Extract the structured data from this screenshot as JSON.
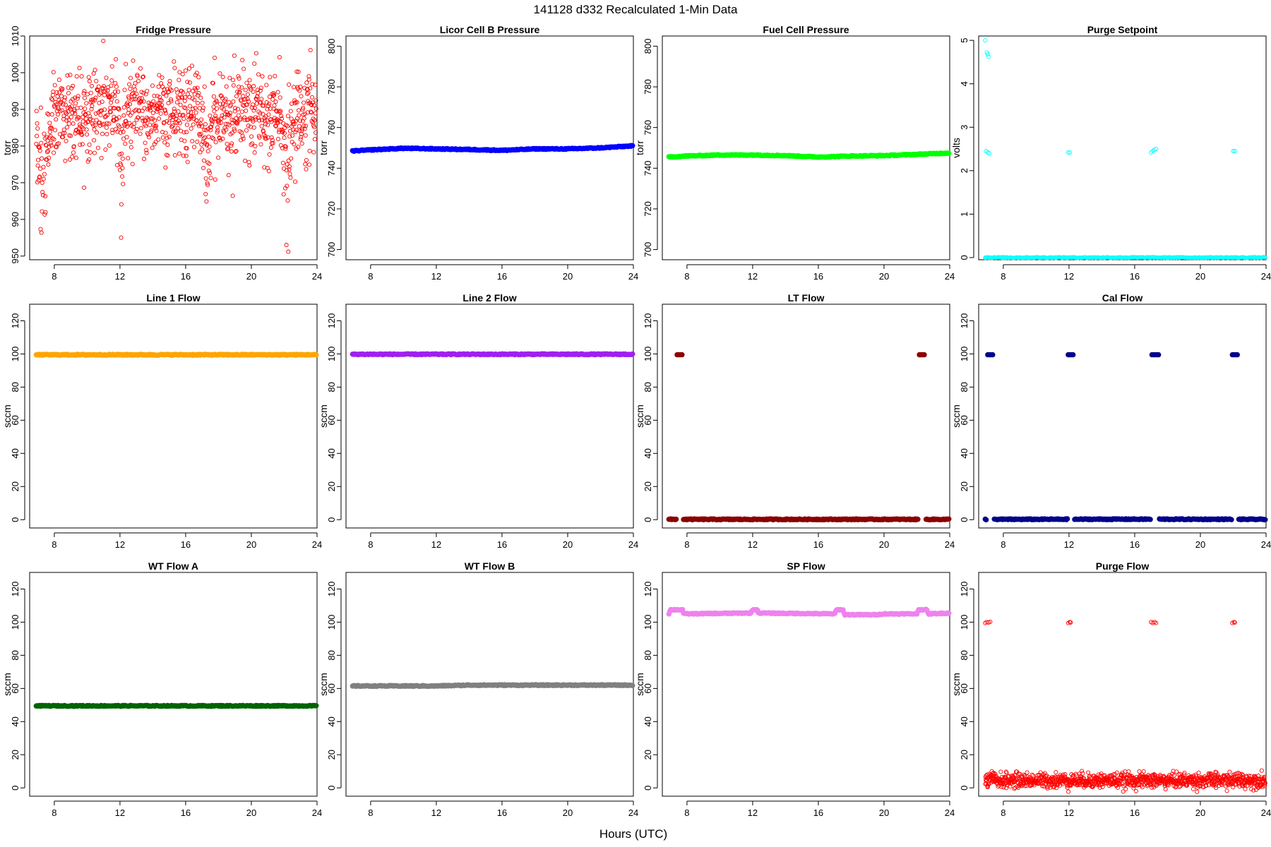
{
  "page": {
    "title": "141128   d332   Recalculated 1-Min Data",
    "xlabel": "Hours (UTC)"
  },
  "chart_data": [
    {
      "type": "scatter",
      "title": "Fridge Pressure",
      "ylabel": "torr",
      "xlabel": "",
      "color": "#ff0000",
      "marker": "open",
      "xlim": [
        6.5,
        24
      ],
      "ylim": [
        949,
        1010
      ],
      "xticks": [
        8,
        12,
        16,
        20,
        24
      ],
      "yticks": [
        950,
        960,
        970,
        980,
        990,
        1000,
        1010
      ],
      "x_range": [
        6.9,
        23.95
      ],
      "baseline": 989,
      "noise": 6,
      "dips": [
        {
          "x": 7.3,
          "depth": 25,
          "width": 0.35
        },
        {
          "x": 12.1,
          "depth": 15,
          "width": 0.15
        },
        {
          "x": 17.3,
          "depth": 18,
          "width": 0.25
        },
        {
          "x": 22.2,
          "depth": 20,
          "width": 0.25
        }
      ]
    },
    {
      "type": "scatter",
      "title": "Licor Cell B Pressure",
      "ylabel": "torr",
      "xlabel": "",
      "color": "#0000ff",
      "marker": "filled",
      "xlim": [
        6.5,
        24
      ],
      "ylim": [
        695,
        805
      ],
      "xticks": [
        8,
        12,
        16,
        20,
        24
      ],
      "yticks": [
        700,
        720,
        740,
        760,
        780,
        800
      ],
      "x_range": [
        6.9,
        23.95
      ],
      "points": [
        [
          6.9,
          748.5
        ],
        [
          8,
          749
        ],
        [
          10,
          749.8
        ],
        [
          12,
          749.5
        ],
        [
          14,
          749.2
        ],
        [
          16,
          748.8
        ],
        [
          18,
          749.5
        ],
        [
          20,
          749.5
        ],
        [
          22,
          750
        ],
        [
          24,
          751
        ]
      ]
    },
    {
      "type": "scatter",
      "title": "Fuel Cell Pressure",
      "ylabel": "torr",
      "xlabel": "",
      "color": "#00ff00",
      "marker": "filled",
      "xlim": [
        6.5,
        24
      ],
      "ylim": [
        695,
        805
      ],
      "xticks": [
        8,
        12,
        16,
        20,
        24
      ],
      "yticks": [
        700,
        720,
        740,
        760,
        780,
        800
      ],
      "x_range": [
        6.9,
        23.95
      ],
      "points": [
        [
          6.9,
          745.5
        ],
        [
          8,
          746
        ],
        [
          10,
          746.5
        ],
        [
          12,
          746.5
        ],
        [
          14,
          746.2
        ],
        [
          16,
          745.5
        ],
        [
          18,
          746
        ],
        [
          20,
          746.2
        ],
        [
          22,
          746.8
        ],
        [
          24,
          747.5
        ]
      ]
    },
    {
      "type": "scatter",
      "title": "Purge Setpoint",
      "ylabel": "volts",
      "xlabel": "",
      "color": "#00ffff",
      "marker": "open",
      "xlim": [
        6.5,
        24
      ],
      "ylim": [
        -0.05,
        5.1
      ],
      "xticks": [
        8,
        12,
        16,
        20,
        24
      ],
      "yticks": [
        0,
        1,
        2,
        3,
        4,
        5
      ],
      "x_range": [
        6.9,
        23.95
      ],
      "baseline": 0,
      "extra_points": [
        [
          6.9,
          5.0
        ],
        [
          7.0,
          4.72
        ],
        [
          7.05,
          4.68
        ],
        [
          7.1,
          4.62
        ],
        [
          6.95,
          2.45
        ],
        [
          7.05,
          2.42
        ],
        [
          7.15,
          2.4
        ],
        [
          11.95,
          2.42
        ],
        [
          12.05,
          2.42
        ],
        [
          17.0,
          2.42
        ],
        [
          17.1,
          2.45
        ],
        [
          17.2,
          2.48
        ],
        [
          17.3,
          2.5
        ],
        [
          22.0,
          2.45
        ],
        [
          22.1,
          2.45
        ],
        [
          6.9,
          0.0
        ],
        [
          7.0,
          0.0
        ]
      ]
    },
    {
      "type": "scatter",
      "title": "Line 1 Flow",
      "ylabel": "sccm",
      "xlabel": "",
      "color": "#ffa500",
      "marker": "filled",
      "xlim": [
        6.5,
        24
      ],
      "ylim": [
        -5,
        130
      ],
      "xticks": [
        8,
        12,
        16,
        20,
        24
      ],
      "yticks": [
        0,
        20,
        40,
        60,
        80,
        100,
        120
      ],
      "x_range": [
        6.9,
        23.95
      ],
      "points": [
        [
          6.9,
          99.5
        ],
        [
          24,
          99.5
        ]
      ]
    },
    {
      "type": "scatter",
      "title": "Line 2 Flow",
      "ylabel": "sccm",
      "xlabel": "",
      "color": "#a020f0",
      "marker": "filled",
      "xlim": [
        6.5,
        24
      ],
      "ylim": [
        -5,
        130
      ],
      "xticks": [
        8,
        12,
        16,
        20,
        24
      ],
      "yticks": [
        0,
        20,
        40,
        60,
        80,
        100,
        120
      ],
      "x_range": [
        6.9,
        23.95
      ],
      "points": [
        [
          6.9,
          99.8
        ],
        [
          24,
          99.8
        ]
      ]
    },
    {
      "type": "scatter",
      "title": "LT Flow",
      "ylabel": "sccm",
      "xlabel": "",
      "color": "#8b0000",
      "marker": "filled",
      "xlim": [
        6.5,
        24
      ],
      "ylim": [
        -5,
        130
      ],
      "xticks": [
        8,
        12,
        16,
        20,
        24
      ],
      "yticks": [
        0,
        20,
        40,
        60,
        80,
        100,
        120
      ],
      "x_range": [
        6.9,
        23.95
      ],
      "points": [
        [
          6.9,
          0.2
        ],
        [
          24,
          0.2
        ]
      ],
      "gaps": [
        [
          7.35,
          7.75
        ],
        [
          22.1,
          22.55
        ]
      ],
      "extra_points": [
        [
          7.4,
          99.5
        ],
        [
          7.5,
          99.5
        ],
        [
          7.6,
          99.5
        ],
        [
          7.7,
          99.5
        ],
        [
          22.15,
          99.5
        ],
        [
          22.25,
          99.5
        ],
        [
          22.35,
          99.5
        ],
        [
          22.45,
          99.5
        ]
      ]
    },
    {
      "type": "scatter",
      "title": "Cal Flow",
      "ylabel": "sccm",
      "xlabel": "",
      "color": "#00008b",
      "marker": "filled",
      "xlim": [
        6.5,
        24
      ],
      "ylim": [
        -5,
        130
      ],
      "xticks": [
        8,
        12,
        16,
        20,
        24
      ],
      "yticks": [
        0,
        20,
        40,
        60,
        80,
        100,
        120
      ],
      "x_range": [
        6.9,
        23.95
      ],
      "points": [
        [
          6.9,
          0.2
        ],
        [
          16,
          0.3
        ],
        [
          24,
          0.2
        ]
      ],
      "gaps": [
        [
          7.0,
          7.4
        ],
        [
          11.9,
          12.3
        ],
        [
          17.0,
          17.5
        ],
        [
          21.9,
          22.3
        ]
      ],
      "extra_points": [
        [
          7.05,
          99.5
        ],
        [
          7.15,
          99.5
        ],
        [
          7.25,
          99.5
        ],
        [
          7.35,
          99.5
        ],
        [
          11.95,
          99.5
        ],
        [
          12.05,
          99.5
        ],
        [
          12.15,
          99.5
        ],
        [
          12.25,
          99.5
        ],
        [
          17.05,
          99.5
        ],
        [
          17.15,
          99.5
        ],
        [
          17.25,
          99.5
        ],
        [
          17.35,
          99.5
        ],
        [
          17.45,
          99.5
        ],
        [
          21.95,
          99.5
        ],
        [
          22.05,
          99.5
        ],
        [
          22.15,
          99.5
        ],
        [
          22.25,
          99.5
        ]
      ]
    },
    {
      "type": "scatter",
      "title": "WT Flow A",
      "ylabel": "sccm",
      "xlabel": "",
      "color": "#006400",
      "marker": "filled",
      "xlim": [
        6.5,
        24
      ],
      "ylim": [
        -5,
        130
      ],
      "xticks": [
        8,
        12,
        16,
        20,
        24
      ],
      "yticks": [
        0,
        20,
        40,
        60,
        80,
        100,
        120
      ],
      "x_range": [
        6.9,
        23.95
      ],
      "points": [
        [
          6.9,
          49.5
        ],
        [
          24,
          49.5
        ]
      ]
    },
    {
      "type": "scatter",
      "title": "WT Flow B",
      "ylabel": "sccm",
      "xlabel": "",
      "color": "#808080",
      "marker": "filled",
      "xlim": [
        6.5,
        24
      ],
      "ylim": [
        -5,
        130
      ],
      "xticks": [
        8,
        12,
        16,
        20,
        24
      ],
      "yticks": [
        0,
        20,
        40,
        60,
        80,
        100,
        120
      ],
      "x_range": [
        6.9,
        23.95
      ],
      "points": [
        [
          6.9,
          61.5
        ],
        [
          12,
          61.5
        ],
        [
          14,
          62
        ],
        [
          24,
          62
        ]
      ]
    },
    {
      "type": "scatter",
      "title": "SP Flow",
      "ylabel": "sccm",
      "xlabel": "",
      "color": "#ee82ee",
      "marker": "filled",
      "xlim": [
        6.5,
        24
      ],
      "ylim": [
        -5,
        130
      ],
      "xticks": [
        8,
        12,
        16,
        20,
        24
      ],
      "yticks": [
        0,
        20,
        40,
        60,
        80,
        100,
        120
      ],
      "x_range": [
        6.9,
        23.95
      ],
      "points": [
        [
          6.9,
          105
        ],
        [
          7.0,
          107.5
        ],
        [
          7.75,
          107.5
        ],
        [
          7.8,
          105
        ],
        [
          11.9,
          105.5
        ],
        [
          12.0,
          107.5
        ],
        [
          12.3,
          107.5
        ],
        [
          12.35,
          105.5
        ],
        [
          17.0,
          105
        ],
        [
          17.1,
          107.5
        ],
        [
          17.5,
          107.5
        ],
        [
          17.6,
          104.5
        ],
        [
          19.5,
          104.5
        ],
        [
          20,
          105
        ],
        [
          22.0,
          105
        ],
        [
          22.1,
          107.5
        ],
        [
          22.6,
          107.5
        ],
        [
          22.7,
          105
        ],
        [
          24,
          105.5
        ]
      ]
    },
    {
      "type": "scatter",
      "title": "Purge Flow",
      "ylabel": "sccm",
      "xlabel": "",
      "color": "#ff0000",
      "marker": "open",
      "xlim": [
        6.5,
        24
      ],
      "ylim": [
        -5,
        130
      ],
      "xticks": [
        8,
        12,
        16,
        20,
        24
      ],
      "yticks": [
        0,
        20,
        40,
        60,
        80,
        100,
        120
      ],
      "x_range": [
        6.9,
        23.95
      ],
      "baseline": 4.5,
      "noise": 2.2,
      "extra_points": [
        [
          6.9,
          99.5
        ],
        [
          7.0,
          100
        ],
        [
          7.1,
          99.8
        ],
        [
          7.2,
          100.2
        ],
        [
          11.95,
          99.5
        ],
        [
          12.05,
          100
        ],
        [
          12.1,
          99.8
        ],
        [
          17.0,
          100
        ],
        [
          17.1,
          99.5
        ],
        [
          17.2,
          100
        ],
        [
          17.3,
          99.5
        ],
        [
          21.95,
          99.5
        ],
        [
          22.05,
          100
        ],
        [
          22.1,
          99.8
        ],
        [
          7.3,
          10
        ],
        [
          7.4,
          9
        ],
        [
          7.5,
          8.5
        ],
        [
          22.3,
          9
        ],
        [
          22.4,
          8.5
        ],
        [
          6.95,
          5
        ],
        [
          7.05,
          1.5
        ]
      ]
    }
  ]
}
